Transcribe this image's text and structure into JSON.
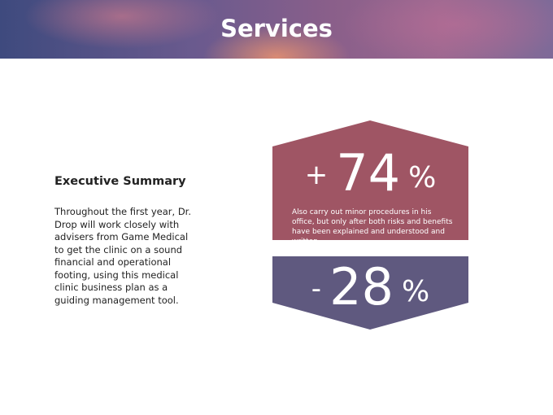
{
  "header": {
    "title": "Services"
  },
  "summary": {
    "heading": "Executive Summary",
    "body": "Throughout the first year, Dr. Drop will work closely with advisers from Game Medical to get the clinic on a sound financial and operational footing, using this medical clinic business plan as a guiding management tool."
  },
  "stats": [
    {
      "sign": "+",
      "number": "74",
      "unit": "%",
      "description": "Also carry out minor procedures in his office, but only after both risks and benefits have been explained and understood and written."
    },
    {
      "sign": "-",
      "number": "28",
      "unit": "%"
    }
  ]
}
